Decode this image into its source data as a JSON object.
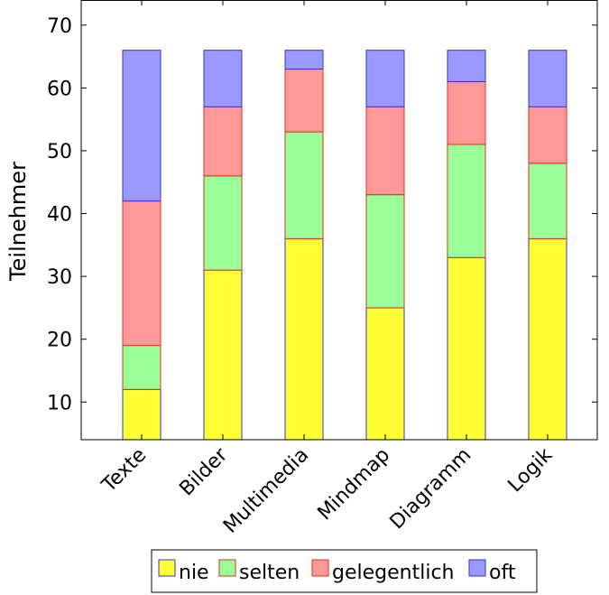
{
  "chart_data": {
    "type": "bar",
    "stacked": true,
    "categories": [
      "Texte",
      "Bilder",
      "Multimedia",
      "Mindmap",
      "Diagramm",
      "Logik"
    ],
    "series": [
      {
        "name": "nie",
        "values": [
          12,
          31,
          36,
          25,
          33,
          36
        ],
        "fill": "#ffff33",
        "stroke": "#3333cc"
      },
      {
        "name": "selten",
        "values": [
          7,
          15,
          17,
          18,
          18,
          12
        ],
        "fill": "#99ff99",
        "stroke": "#e0301e"
      },
      {
        "name": "gelegentlich",
        "values": [
          23,
          11,
          10,
          14,
          10,
          9
        ],
        "fill": "#ff9999",
        "stroke": "#e0301e"
      },
      {
        "name": "oft",
        "values": [
          24,
          9,
          3,
          9,
          5,
          9
        ],
        "fill": "#9999ff",
        "stroke": "#3333cc"
      }
    ],
    "ylabel": "Teilnehmer",
    "xlabel": "",
    "ylim": [
      4,
      74
    ],
    "yticks": [
      10,
      20,
      30,
      40,
      50,
      60,
      70
    ],
    "legend_position": "bottom"
  }
}
